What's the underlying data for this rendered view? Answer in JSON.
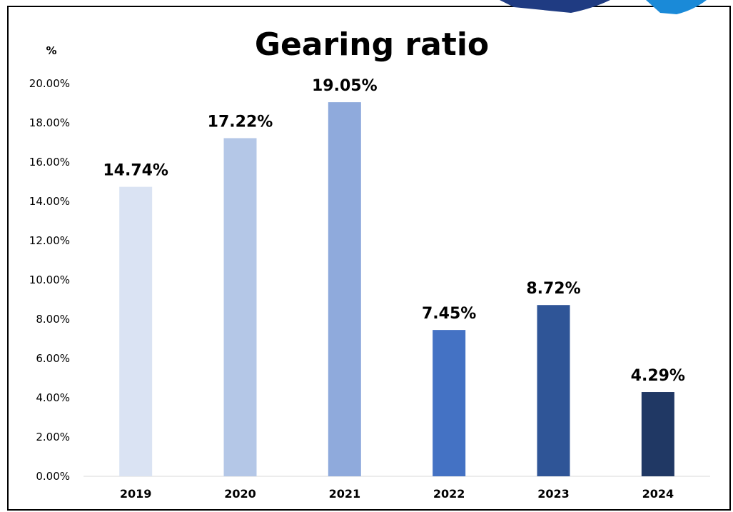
{
  "chart_data": {
    "type": "bar",
    "title": "Gearing ratio",
    "ylabel": "%",
    "xlabel": "",
    "categories": [
      "2019",
      "2020",
      "2021",
      "2022",
      "2023",
      "2024"
    ],
    "values": [
      14.74,
      17.22,
      19.05,
      7.45,
      8.72,
      4.29
    ],
    "data_labels": [
      "14.74%",
      "17.22%",
      "19.05%",
      "7.45%",
      "8.72%",
      "4.29%"
    ],
    "bar_colors": [
      "#dae3f3",
      "#b4c7e7",
      "#8faadc",
      "#4472c4",
      "#2f5597",
      "#203864"
    ],
    "ylim": [
      0,
      20
    ],
    "yticks": [
      0,
      2,
      4,
      6,
      8,
      10,
      12,
      14,
      16,
      18,
      20
    ],
    "ytick_labels": [
      "0.00%",
      "2.00%",
      "4.00%",
      "6.00%",
      "8.00%",
      "10.00%",
      "12.00%",
      "14.00%",
      "16.00%",
      "18.00%",
      "20.00%"
    ],
    "grid": false,
    "legend": "none"
  },
  "decoration": {
    "accent_colors": [
      "#1f3b82",
      "#1a8ad8"
    ]
  }
}
